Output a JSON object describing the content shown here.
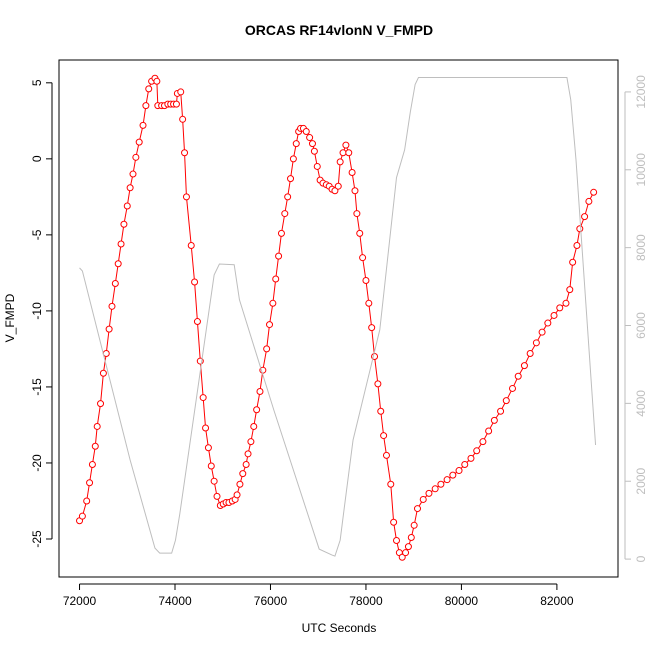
{
  "chart_data": {
    "type": "line",
    "title": "ORCAS RF14vlonN V_FMPD",
    "x_label": "UTC Seconds",
    "y_label": "V_FMPD",
    "xlim": [
      71570,
      83280
    ],
    "ylim": [
      -27.5,
      6.5
    ],
    "y2lim": [
      -460,
      12820
    ],
    "xticks": [
      72000,
      74000,
      76000,
      78000,
      80000,
      82000
    ],
    "yticks": [
      -25,
      -20,
      -15,
      -10,
      -5,
      0,
      5
    ],
    "y2ticks": [
      0,
      2000,
      4000,
      6000,
      8000,
      10000,
      12000
    ],
    "grid": false,
    "series": [
      {
        "color": "#ff0000",
        "marker": "circle",
        "x": [
          72000,
          72060,
          72150,
          72210,
          72270,
          72330,
          72370,
          72440,
          72500,
          72560,
          72620,
          72680,
          72750,
          72810,
          72870,
          72930,
          73000,
          73060,
          73120,
          73180,
          73250,
          73330,
          73390,
          73450,
          73510,
          73580,
          73620,
          73640,
          73720,
          73780,
          73850,
          73910,
          73970,
          74030,
          74050,
          74120,
          74160,
          74200,
          74240,
          74340,
          74410,
          74470,
          74530,
          74590,
          74640,
          74700,
          74760,
          74820,
          74880,
          74950,
          75010,
          75070,
          75130,
          75200,
          75260,
          75300,
          75360,
          75420,
          75490,
          75530,
          75590,
          75650,
          75710,
          75780,
          75840,
          75920,
          75980,
          76050,
          76110,
          76170,
          76230,
          76300,
          76360,
          76420,
          76480,
          76540,
          76590,
          76630,
          76690,
          76750,
          76820,
          76880,
          76920,
          76980,
          77040,
          77100,
          77170,
          77230,
          77290,
          77350,
          77420,
          77460,
          77520,
          77580,
          77640,
          77710,
          77770,
          77810,
          77870,
          77930,
          78000,
          78060,
          78120,
          78180,
          78250,
          78310,
          78370,
          78430,
          78520,
          78580,
          78640,
          78700,
          78760,
          78830,
          78890,
          78950,
          79010,
          79080,
          79200,
          79320,
          79450,
          79570,
          79700,
          79820,
          79950,
          80070,
          80200,
          80320,
          80450,
          80570,
          80690,
          80820,
          80940,
          81070,
          81190,
          81320,
          81440,
          81570,
          81690,
          81810,
          81940,
          82060,
          82190,
          82270,
          82330,
          82420,
          82480,
          82580,
          82670,
          82770
        ],
        "values": [
          -23.8,
          -23.5,
          -22.5,
          -21.3,
          -20.1,
          -18.9,
          -17.6,
          -16.1,
          -14.1,
          -12.8,
          -11.2,
          -9.7,
          -8.2,
          -6.9,
          -5.6,
          -4.3,
          -3.1,
          -1.9,
          -1.0,
          0.1,
          1.1,
          2.2,
          3.5,
          4.6,
          5.1,
          5.3,
          5.1,
          3.5,
          3.5,
          3.5,
          3.6,
          3.6,
          3.6,
          3.6,
          4.3,
          4.4,
          2.6,
          0.4,
          -2.5,
          -5.7,
          -8.1,
          -10.7,
          -13.3,
          -15.7,
          -17.7,
          -19.0,
          -20.2,
          -21.2,
          -22.2,
          -22.8,
          -22.7,
          -22.6,
          -22.6,
          -22.5,
          -22.4,
          -22.1,
          -21.4,
          -20.7,
          -20.1,
          -19.4,
          -18.6,
          -17.6,
          -16.5,
          -15.3,
          -13.9,
          -12.5,
          -10.9,
          -9.5,
          -7.9,
          -6.4,
          -4.9,
          -3.6,
          -2.5,
          -1.3,
          0.0,
          1.0,
          1.8,
          2.0,
          2.0,
          1.8,
          1.4,
          1.0,
          0.5,
          -0.5,
          -1.4,
          -1.6,
          -1.7,
          -1.8,
          -2.0,
          -2.1,
          -1.8,
          -0.2,
          0.4,
          0.9,
          0.4,
          -0.9,
          -2.1,
          -3.6,
          -4.9,
          -6.5,
          -8.0,
          -9.5,
          -11.1,
          -13.0,
          -14.8,
          -16.6,
          -18.2,
          -19.5,
          -21.4,
          -23.9,
          -25.1,
          -25.9,
          -26.2,
          -25.9,
          -25.5,
          -24.9,
          -24.1,
          -23.0,
          -22.4,
          -22.0,
          -21.7,
          -21.4,
          -21.1,
          -20.8,
          -20.5,
          -20.1,
          -19.7,
          -19.2,
          -18.6,
          -17.9,
          -17.2,
          -16.6,
          -15.9,
          -15.1,
          -14.3,
          -13.6,
          -12.8,
          -12.1,
          -11.4,
          -10.8,
          -10.3,
          -9.8,
          -9.5,
          -8.6,
          -6.8,
          -5.7,
          -4.6,
          -3.8,
          -2.8,
          -2.2
        ]
      },
      {
        "color": "#bebebe",
        "axis": "y2",
        "x": [
          72000,
          72060,
          73060,
          73580,
          73680,
          73930,
          74010,
          74100,
          74820,
          74930,
          75240,
          75350,
          76070,
          77020,
          77290,
          77350,
          77460,
          77540,
          77730,
          78290,
          78640,
          78810,
          78930,
          79030,
          79100,
          81980,
          82210,
          82290,
          82400,
          82810
        ],
        "values": [
          7480,
          7400,
          2545,
          283,
          154,
          154,
          488,
          1157,
          7300,
          7580,
          7560,
          6660,
          3830,
          257,
          103,
          77,
          488,
          1260,
          3060,
          5890,
          9800,
          10510,
          11490,
          12190,
          12370,
          12370,
          12370,
          11800,
          10260,
          2930
        ]
      }
    ]
  }
}
